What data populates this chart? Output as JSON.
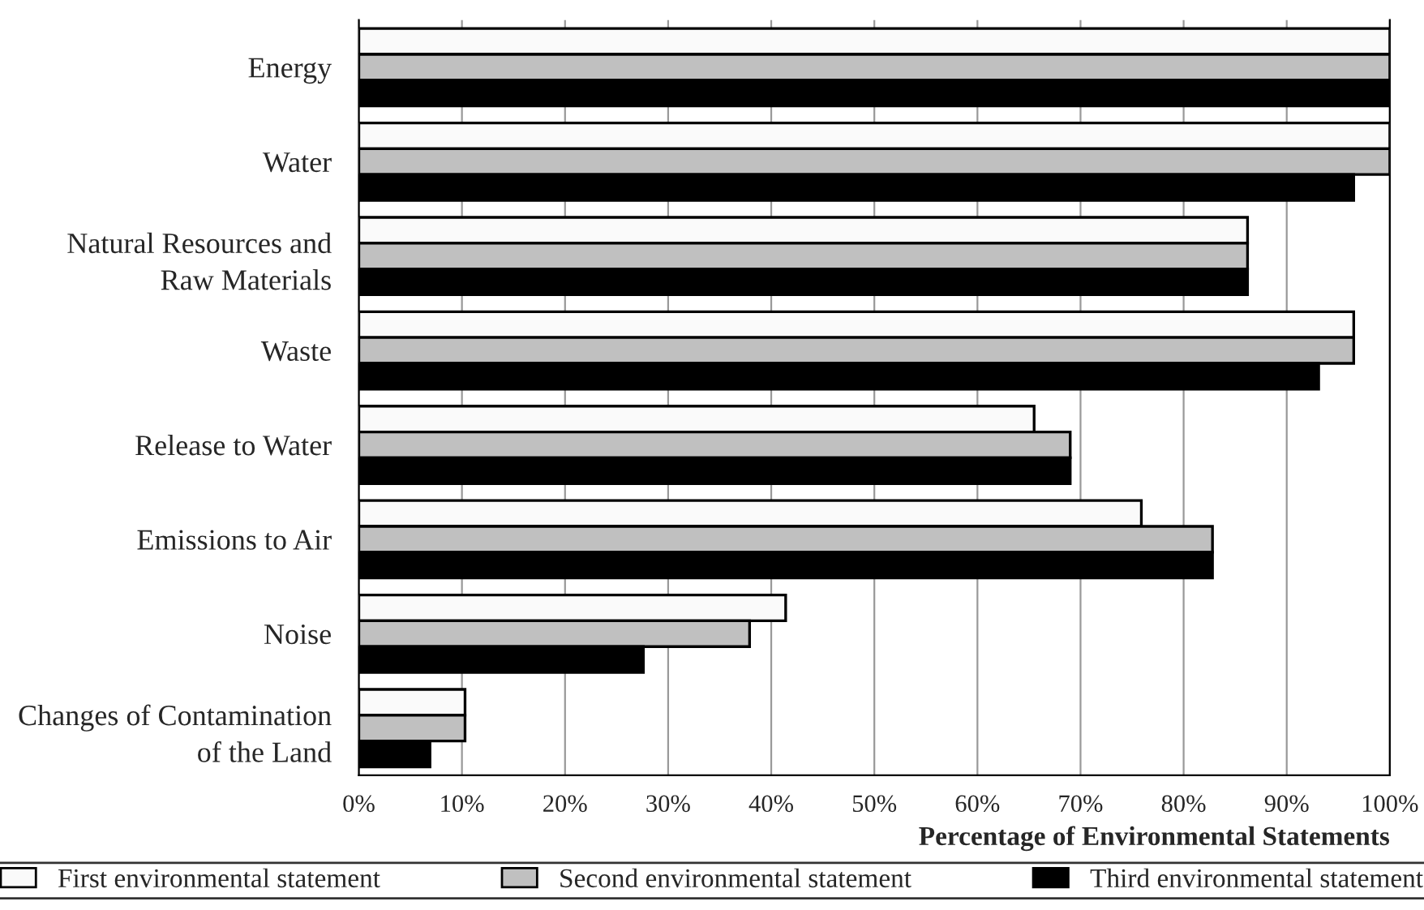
{
  "chart_data": {
    "type": "bar",
    "orientation": "horizontal",
    "xlabel": "Percentage of Environmental Statements",
    "categories": [
      "Energy",
      "Water",
      "Natural Resources and\nRaw Materials",
      "Waste",
      "Release to Water",
      "Emissions to Air",
      "Noise",
      "Changes of Contamination\nof the Land"
    ],
    "series": [
      {
        "name": "First environmental statement",
        "color": "#fafafa",
        "values": [
          100,
          100,
          86.2,
          96.5,
          65.5,
          75.9,
          41.4,
          10.3
        ]
      },
      {
        "name": "Second environmental statement",
        "color": "#c0c0c0",
        "values": [
          100,
          100,
          86.2,
          96.5,
          69.0,
          82.8,
          37.9,
          10.3
        ]
      },
      {
        "name": "Third environmental statement",
        "color": "#000000",
        "values": [
          100,
          96.5,
          86.2,
          93.1,
          69.0,
          82.8,
          27.6,
          6.9
        ]
      }
    ],
    "xlim": [
      0,
      100
    ],
    "xticks": [
      {
        "value": 0,
        "label": "0%"
      },
      {
        "value": 10,
        "label": "10%"
      },
      {
        "value": 20,
        "label": "20%"
      },
      {
        "value": 30,
        "label": "30%"
      },
      {
        "value": 40,
        "label": "40%"
      },
      {
        "value": 50,
        "label": "50%"
      },
      {
        "value": 60,
        "label": "60%"
      },
      {
        "value": 70,
        "label": "70%"
      },
      {
        "value": 80,
        "label": "80%"
      },
      {
        "value": 90,
        "label": "90%"
      },
      {
        "value": 100,
        "label": "100%"
      }
    ],
    "grid": "x",
    "legend": "bottom"
  }
}
